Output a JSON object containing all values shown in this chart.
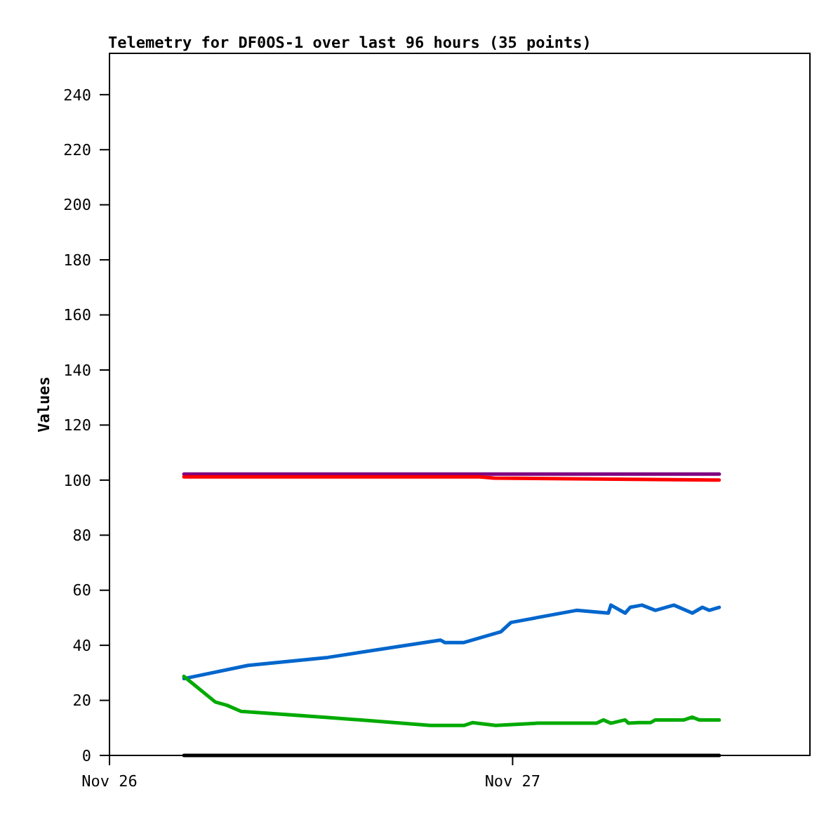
{
  "chart_data": {
    "type": "line",
    "title": "Telemetry for DF0OS-1 over last 96 hours (35 points)",
    "ylabel": "Values",
    "xlim": [
      "--11-26",
      "--11-27T17:42"
    ],
    "xticks": [
      {
        "value": "--11-26",
        "label": "Nov 26"
      },
      {
        "value": "--11-27",
        "label": "Nov 27"
      }
    ],
    "ylim": [
      0,
      255
    ],
    "yticks": [
      0,
      20,
      40,
      60,
      80,
      100,
      120,
      140,
      160,
      180,
      200,
      220,
      240
    ],
    "grid": false,
    "marker": "none",
    "line_style": "solid",
    "series": [
      {
        "color": "#800080",
        "x": [
          "--11-26T04:26",
          "--11-27T12:18"
        ],
        "values": [
          102.2,
          102.2
        ]
      },
      {
        "color": "#ff0000",
        "x": [
          "--11-26T04:26",
          "--11-26T22:03",
          "--11-26T22:54",
          "--11-27T12:18"
        ],
        "values": [
          101.2,
          101.2,
          100.7,
          100.0
        ]
      },
      {
        "color": "#0066cc",
        "x": [
          "--11-26T04:26",
          "--11-26T08:15",
          "--11-26T13:00",
          "--11-26T19:42",
          "--11-26T19:58",
          "--11-26T21:06",
          "--11-26T23:18",
          "--11-26T23:54",
          "--11-27T03:48",
          "--11-27T05:42",
          "--11-27T05:51",
          "--11-27T06:42",
          "--11-27T07:00",
          "--11-27T07:42",
          "--11-27T08:30",
          "--11-27T09:36",
          "--11-27T10:42",
          "--11-27T11:18",
          "--11-27T11:42",
          "--11-27T12:18"
        ],
        "values": [
          27.9,
          32.7,
          35.6,
          41.9,
          41.0,
          41.0,
          44.9,
          48.3,
          52.7,
          51.7,
          54.6,
          51.7,
          53.8,
          54.6,
          52.7,
          54.6,
          51.7,
          53.8,
          52.7,
          53.8
        ]
      },
      {
        "color": "#00aa00",
        "x": [
          "--11-26T04:26",
          "--11-26T06:18",
          "--11-26T07:00",
          "--11-26T07:50",
          "--11-26T13:00",
          "--11-26T19:06",
          "--11-26T21:06",
          "--11-26T21:36",
          "--11-26T23:00",
          "--11-27T01:30",
          "--11-27T05:00",
          "--11-27T05:24",
          "--11-27T05:51",
          "--11-27T06:42",
          "--11-27T06:54",
          "--11-27T07:30",
          "--11-27T08:12",
          "--11-27T08:30",
          "--11-27T10:12",
          "--11-27T10:42",
          "--11-27T11:06",
          "--11-27T12:18"
        ],
        "values": [
          28.7,
          19.4,
          18.2,
          16.0,
          13.8,
          10.9,
          10.9,
          11.9,
          10.9,
          11.7,
          11.7,
          12.9,
          11.7,
          12.9,
          11.7,
          11.9,
          11.9,
          12.9,
          12.9,
          13.9,
          12.9,
          12.9
        ]
      },
      {
        "color": "#000000",
        "x": [
          "--11-26T04:26",
          "--11-27T12:18"
        ],
        "values": [
          0,
          0
        ]
      }
    ]
  }
}
